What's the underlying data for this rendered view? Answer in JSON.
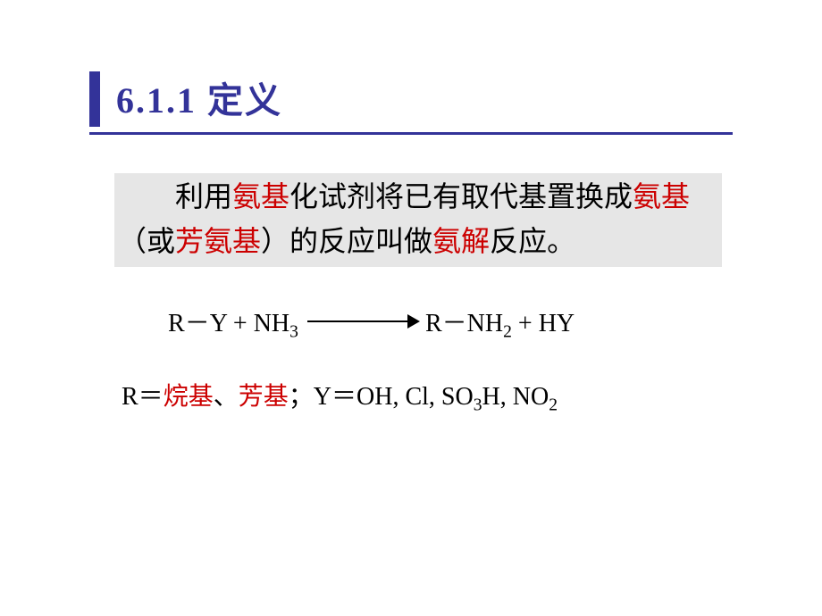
{
  "colors": {
    "heading": "#333399",
    "underline": "#333399",
    "highlight": "#cc0000",
    "definition_bg": "#e6e6e6",
    "text": "#000000",
    "background": "#ffffff"
  },
  "typography": {
    "title_fontsize": 40,
    "body_fontsize": 32,
    "equation_fontsize": 28,
    "legend_fontsize": 28,
    "title_font": "SimSun",
    "equation_font": "Times New Roman"
  },
  "title": {
    "number": "6.1.1",
    "text": "定义"
  },
  "definition": {
    "pre": "利用",
    "h1": "氨基",
    "mid1": "化试剂将已有取代基置换成",
    "h2": "氨基",
    "mid2": "（或",
    "h3": "芳氨基",
    "mid3": "）的反应叫做",
    "h4": "氨解",
    "post": "反应。"
  },
  "equation": {
    "lhs_R": "R",
    "lhs_dash": "－",
    "lhs_Y": "Y",
    "plus": "  +  ",
    "NH": "NH",
    "sub3": "3",
    "rhs_R": "R",
    "rhs_dash": "－",
    "rhs_NH": "NH",
    "sub2": "2",
    "HY": "HY"
  },
  "legend": {
    "R_eq": "R＝",
    "alkyl": "烷基",
    "sep": "、",
    "aryl": "芳基",
    "semicolon": "；",
    "Y_eq": "Y＝",
    "OH": "OH",
    "comma": ", ",
    "Cl": "Cl",
    "SO": "SO",
    "sub3": "3",
    "H": "H",
    "NO": "NO",
    "sub2": "2"
  }
}
